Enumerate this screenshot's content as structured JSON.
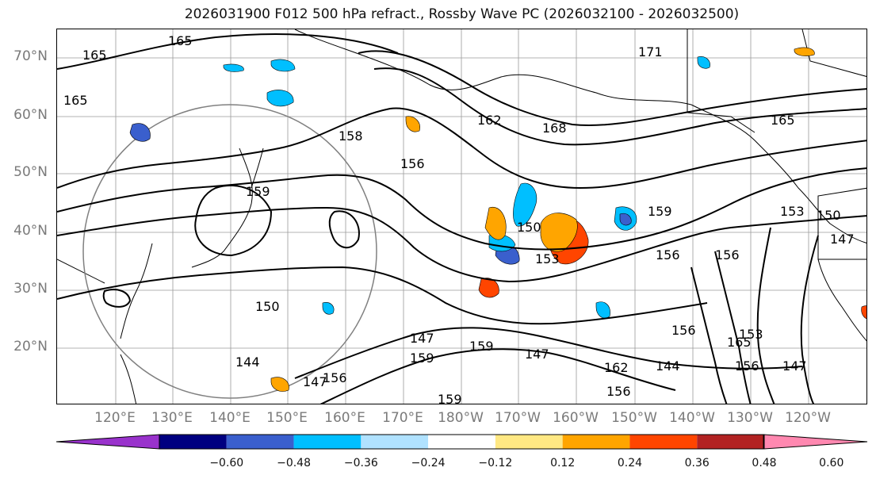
{
  "title": "2026031900 F012 500 hPa refract., Rossby Wave PC (2026032100 - 2026032500)",
  "map": {
    "lat_labels": [
      "70°N",
      "60°N",
      "50°N",
      "40°N",
      "30°N",
      "20°N"
    ],
    "lon_labels": [
      "120°E",
      "130°E",
      "140°E",
      "150°E",
      "160°E",
      "170°E",
      "180°W",
      "170°W",
      "160°W",
      "150°W",
      "140°W",
      "130°W",
      "120°W"
    ],
    "contour_labels": [
      "165",
      "165",
      "165",
      "171",
      "168",
      "162",
      "158",
      "156",
      "159",
      "153",
      "150",
      "147",
      "165",
      "159",
      "156",
      "156",
      "153",
      "150",
      "147",
      "150",
      "144",
      "147",
      "156",
      "159",
      "147",
      "159",
      "159",
      "144",
      "156",
      "162",
      "165",
      "156",
      "156",
      "147",
      "153"
    ],
    "contour_color": "#000000",
    "circle_color": "#808080"
  },
  "colorbar": {
    "colors": [
      "#9932cc",
      "#000080",
      "#3a5fcd",
      "#00bfff",
      "#b0e2ff",
      "#ffffff",
      "#ffe883",
      "#ffa500",
      "#ff4500",
      "#b22222",
      "#ff88b0"
    ],
    "ticks": [
      "−0.60",
      "−0.48",
      "−0.36",
      "−0.24",
      "−0.12",
      "0.12",
      "0.24",
      "0.36",
      "0.48",
      "0.60"
    ]
  }
}
